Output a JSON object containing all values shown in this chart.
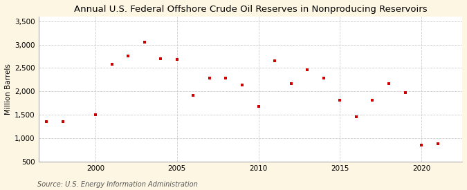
{
  "title": "Annual U.S. Federal Offshore Crude Oil Reserves in Nonproducing Reservoirs",
  "ylabel": "Million Barrels",
  "source": "Source: U.S. Energy Information Administration",
  "background_color": "#fdf6e3",
  "plot_background_color": "#ffffff",
  "marker_color": "#cc0000",
  "marker": "s",
  "marker_size": 3.5,
  "years": [
    1997,
    1998,
    2000,
    2001,
    2002,
    2003,
    2004,
    2005,
    2006,
    2007,
    2008,
    2009,
    2010,
    2011,
    2012,
    2013,
    2014,
    2015,
    2016,
    2017,
    2018,
    2019,
    2020,
    2021
  ],
  "values": [
    1350,
    1360,
    1510,
    2580,
    2750,
    3050,
    2700,
    2680,
    1920,
    2280,
    2290,
    2140,
    1680,
    2650,
    2170,
    2460,
    2290,
    1810,
    1460,
    1820,
    2160,
    1980,
    860,
    880
  ],
  "xlim": [
    1996.5,
    2022.5
  ],
  "ylim": [
    500,
    3600
  ],
  "yticks": [
    500,
    1000,
    1500,
    2000,
    2500,
    3000,
    3500
  ],
  "xticks": [
    2000,
    2005,
    2010,
    2015,
    2020
  ],
  "grid_color": "#cccccc",
  "title_fontsize": 9.5,
  "label_fontsize": 7.5,
  "tick_fontsize": 7.5,
  "source_fontsize": 7
}
